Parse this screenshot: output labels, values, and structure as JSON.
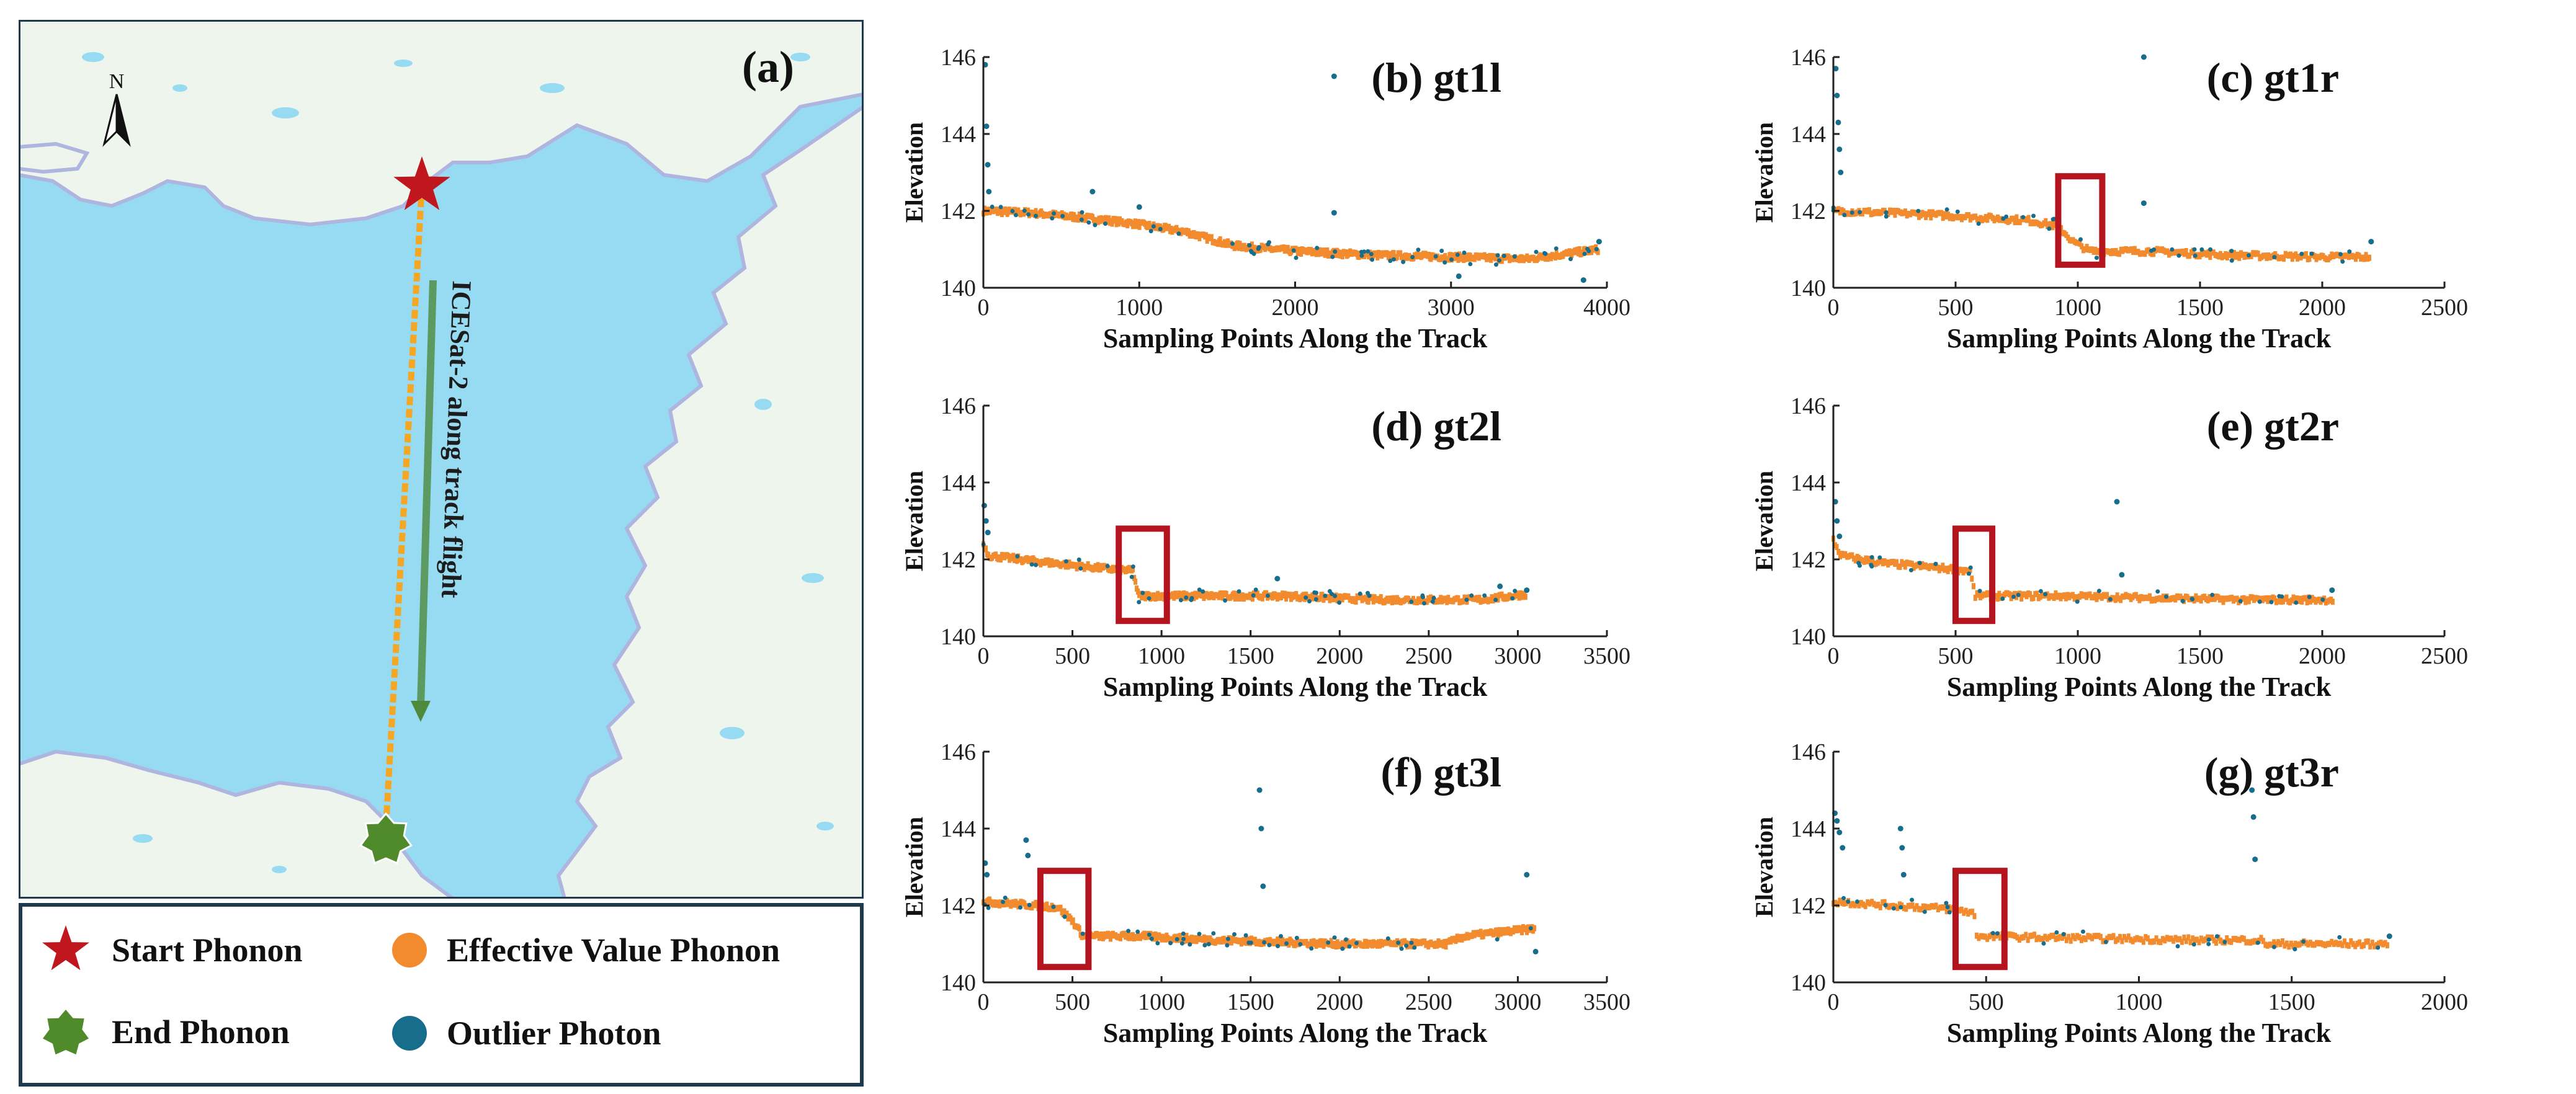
{
  "map": {
    "panel_label": "(a)",
    "north_label": "N",
    "flight_label": "ICESat-2 along track flight",
    "colors": {
      "water": "#97dbf2",
      "land": "#eef5ec",
      "coast": "#aeb6e0",
      "track": "#f5a623",
      "arrow": "#4e8a3c"
    }
  },
  "legend": {
    "items": [
      {
        "label": "Start Phonon",
        "icon": "red-star-icon",
        "color": "#c0161e"
      },
      {
        "label": "Effective Value Phonon",
        "icon": "orange-dot-icon",
        "color": "#f28a2e"
      },
      {
        "label": "End Phonon",
        "icon": "green-star-icon",
        "color": "#4f8a2b"
      },
      {
        "label": "Outlier Photon",
        "icon": "blue-dot-icon",
        "color": "#166e8c"
      }
    ]
  },
  "chart_data": [
    {
      "type": "scatter",
      "id": "b",
      "title": "(b) gt1l",
      "xlabel": "Sampling Points Along the Track",
      "ylabel": "Elevation",
      "xlim": [
        0,
        4000
      ],
      "xticks": [
        0,
        1000,
        2000,
        3000,
        4000
      ],
      "ylim": [
        140,
        146
      ],
      "yticks": [
        140,
        142,
        144,
        146
      ],
      "n": 3950,
      "effective_profile": [
        [
          0,
          142.0
        ],
        [
          300,
          141.95
        ],
        [
          700,
          141.8
        ],
        [
          1000,
          141.65
        ],
        [
          1300,
          141.45
        ],
        [
          1600,
          141.1
        ],
        [
          2000,
          140.95
        ],
        [
          2500,
          140.85
        ],
        [
          3000,
          140.8
        ],
        [
          3500,
          140.75
        ],
        [
          3950,
          141.0
        ]
      ],
      "outliers": [
        [
          12,
          145.8
        ],
        [
          20,
          144.2
        ],
        [
          28,
          143.2
        ],
        [
          35,
          142.5
        ],
        [
          700,
          142.5
        ],
        [
          1000,
          142.1
        ],
        [
          2250,
          145.5
        ],
        [
          2250,
          141.95
        ],
        [
          3050,
          140.3
        ],
        [
          3850,
          140.2
        ],
        [
          3950,
          141.2
        ]
      ],
      "highlight": null
    },
    {
      "type": "scatter",
      "id": "c",
      "title": "(c) gt1r",
      "xlabel": "Sampling Points Along the Track",
      "ylabel": "Elevation",
      "xlim": [
        0,
        2500
      ],
      "xticks": [
        0,
        500,
        1000,
        1500,
        2000,
        2500
      ],
      "ylim": [
        140,
        146
      ],
      "yticks": [
        140,
        142,
        144,
        146
      ],
      "n": 2200,
      "effective_profile": [
        [
          0,
          142.0
        ],
        [
          400,
          141.9
        ],
        [
          800,
          141.75
        ],
        [
          920,
          141.6
        ],
        [
          980,
          141.2
        ],
        [
          1050,
          140.95
        ],
        [
          1300,
          140.95
        ],
        [
          1600,
          140.85
        ],
        [
          2000,
          140.8
        ],
        [
          2200,
          140.8
        ]
      ],
      "outliers": [
        [
          10,
          145.7
        ],
        [
          15,
          145.0
        ],
        [
          20,
          144.3
        ],
        [
          25,
          143.6
        ],
        [
          30,
          143.0
        ],
        [
          1270,
          146.0
        ],
        [
          1270,
          142.2
        ],
        [
          2200,
          141.2
        ]
      ],
      "highlight": [
        920,
        1100,
        140.6,
        142.9
      ]
    },
    {
      "type": "scatter",
      "id": "d",
      "title": "(d) gt2l",
      "xlabel": "Sampling Points Along the Track",
      "ylabel": "Elevation",
      "xlim": [
        0,
        3500
      ],
      "xticks": [
        0,
        500,
        1000,
        1500,
        2000,
        2500,
        3000,
        3500
      ],
      "ylim": [
        140,
        146
      ],
      "yticks": [
        140,
        142,
        144,
        146
      ],
      "n": 3050,
      "effective_profile": [
        [
          0,
          142.4
        ],
        [
          30,
          142.1
        ],
        [
          300,
          141.95
        ],
        [
          600,
          141.8
        ],
        [
          840,
          141.7
        ],
        [
          870,
          141.05
        ],
        [
          1200,
          141.05
        ],
        [
          1700,
          141.05
        ],
        [
          2200,
          140.95
        ],
        [
          2800,
          140.95
        ],
        [
          3050,
          141.1
        ]
      ],
      "outliers": [
        [
          5,
          143.4
        ],
        [
          15,
          143.0
        ],
        [
          25,
          142.7
        ],
        [
          1650,
          141.5
        ],
        [
          2900,
          141.3
        ],
        [
          3050,
          141.2
        ]
      ],
      "highlight": [
        760,
        1030,
        140.4,
        142.8
      ]
    },
    {
      "type": "scatter",
      "id": "e",
      "title": "(e) gt2r",
      "xlabel": "Sampling Points Along the Track",
      "ylabel": "Elevation",
      "xlim": [
        0,
        2500
      ],
      "xticks": [
        0,
        500,
        1000,
        1500,
        2000,
        2500
      ],
      "ylim": [
        140,
        146
      ],
      "yticks": [
        140,
        142,
        144,
        146
      ],
      "n": 2050,
      "effective_profile": [
        [
          0,
          142.5
        ],
        [
          30,
          142.1
        ],
        [
          200,
          141.9
        ],
        [
          400,
          141.8
        ],
        [
          560,
          141.7
        ],
        [
          580,
          141.05
        ],
        [
          900,
          141.05
        ],
        [
          1300,
          141.0
        ],
        [
          1700,
          140.95
        ],
        [
          2050,
          140.95
        ]
      ],
      "outliers": [
        [
          8,
          143.5
        ],
        [
          15,
          143.0
        ],
        [
          25,
          142.6
        ],
        [
          1160,
          143.5
        ],
        [
          1180,
          141.6
        ],
        [
          2040,
          141.2
        ]
      ],
      "highlight": [
        500,
        650,
        140.4,
        142.8
      ]
    },
    {
      "type": "scatter",
      "id": "f",
      "title": "(f) gt3l",
      "xlabel": "Sampling Points Along the Track",
      "ylabel": "Elevation",
      "xlim": [
        0,
        3500
      ],
      "xticks": [
        0,
        500,
        1000,
        1500,
        2000,
        2500,
        3000,
        3500
      ],
      "ylim": [
        140,
        146
      ],
      "yticks": [
        140,
        142,
        144,
        146
      ],
      "n": 3100,
      "effective_profile": [
        [
          0,
          142.1
        ],
        [
          300,
          142.0
        ],
        [
          420,
          141.95
        ],
        [
          500,
          141.6
        ],
        [
          560,
          141.2
        ],
        [
          900,
          141.2
        ],
        [
          1300,
          141.1
        ],
        [
          2000,
          141.0
        ],
        [
          2600,
          141.0
        ],
        [
          2700,
          141.2
        ],
        [
          3100,
          141.4
        ]
      ],
      "outliers": [
        [
          10,
          143.1
        ],
        [
          20,
          142.8
        ],
        [
          240,
          143.7
        ],
        [
          250,
          143.3
        ],
        [
          1550,
          145.0
        ],
        [
          1560,
          144.0
        ],
        [
          1570,
          142.5
        ],
        [
          3050,
          142.8
        ],
        [
          3100,
          140.8
        ]
      ],
      "highlight": [
        320,
        590,
        140.4,
        142.9
      ]
    },
    {
      "type": "scatter",
      "id": "g",
      "title": "(g) gt3r",
      "xlabel": "Sampling Points Along the Track",
      "ylabel": "Elevation",
      "xlim": [
        0,
        2000
      ],
      "xticks": [
        0,
        500,
        1000,
        1500,
        2000
      ],
      "ylim": [
        140,
        146
      ],
      "yticks": [
        140,
        142,
        144,
        146
      ],
      "n": 1820,
      "effective_profile": [
        [
          0,
          142.1
        ],
        [
          200,
          142.0
        ],
        [
          400,
          141.9
        ],
        [
          460,
          141.8
        ],
        [
          470,
          141.2
        ],
        [
          800,
          141.15
        ],
        [
          1200,
          141.1
        ],
        [
          1400,
          141.1
        ],
        [
          1410,
          141.0
        ],
        [
          1820,
          141.0
        ]
      ],
      "outliers": [
        [
          5,
          144.4
        ],
        [
          12,
          144.2
        ],
        [
          20,
          143.9
        ],
        [
          30,
          143.5
        ],
        [
          220,
          144.0
        ],
        [
          225,
          143.5
        ],
        [
          230,
          142.8
        ],
        [
          1370,
          145.0
        ],
        [
          1375,
          144.3
        ],
        [
          1380,
          143.2
        ],
        [
          1820,
          141.2
        ]
      ],
      "highlight": [
        400,
        560,
        140.4,
        142.9
      ]
    }
  ]
}
